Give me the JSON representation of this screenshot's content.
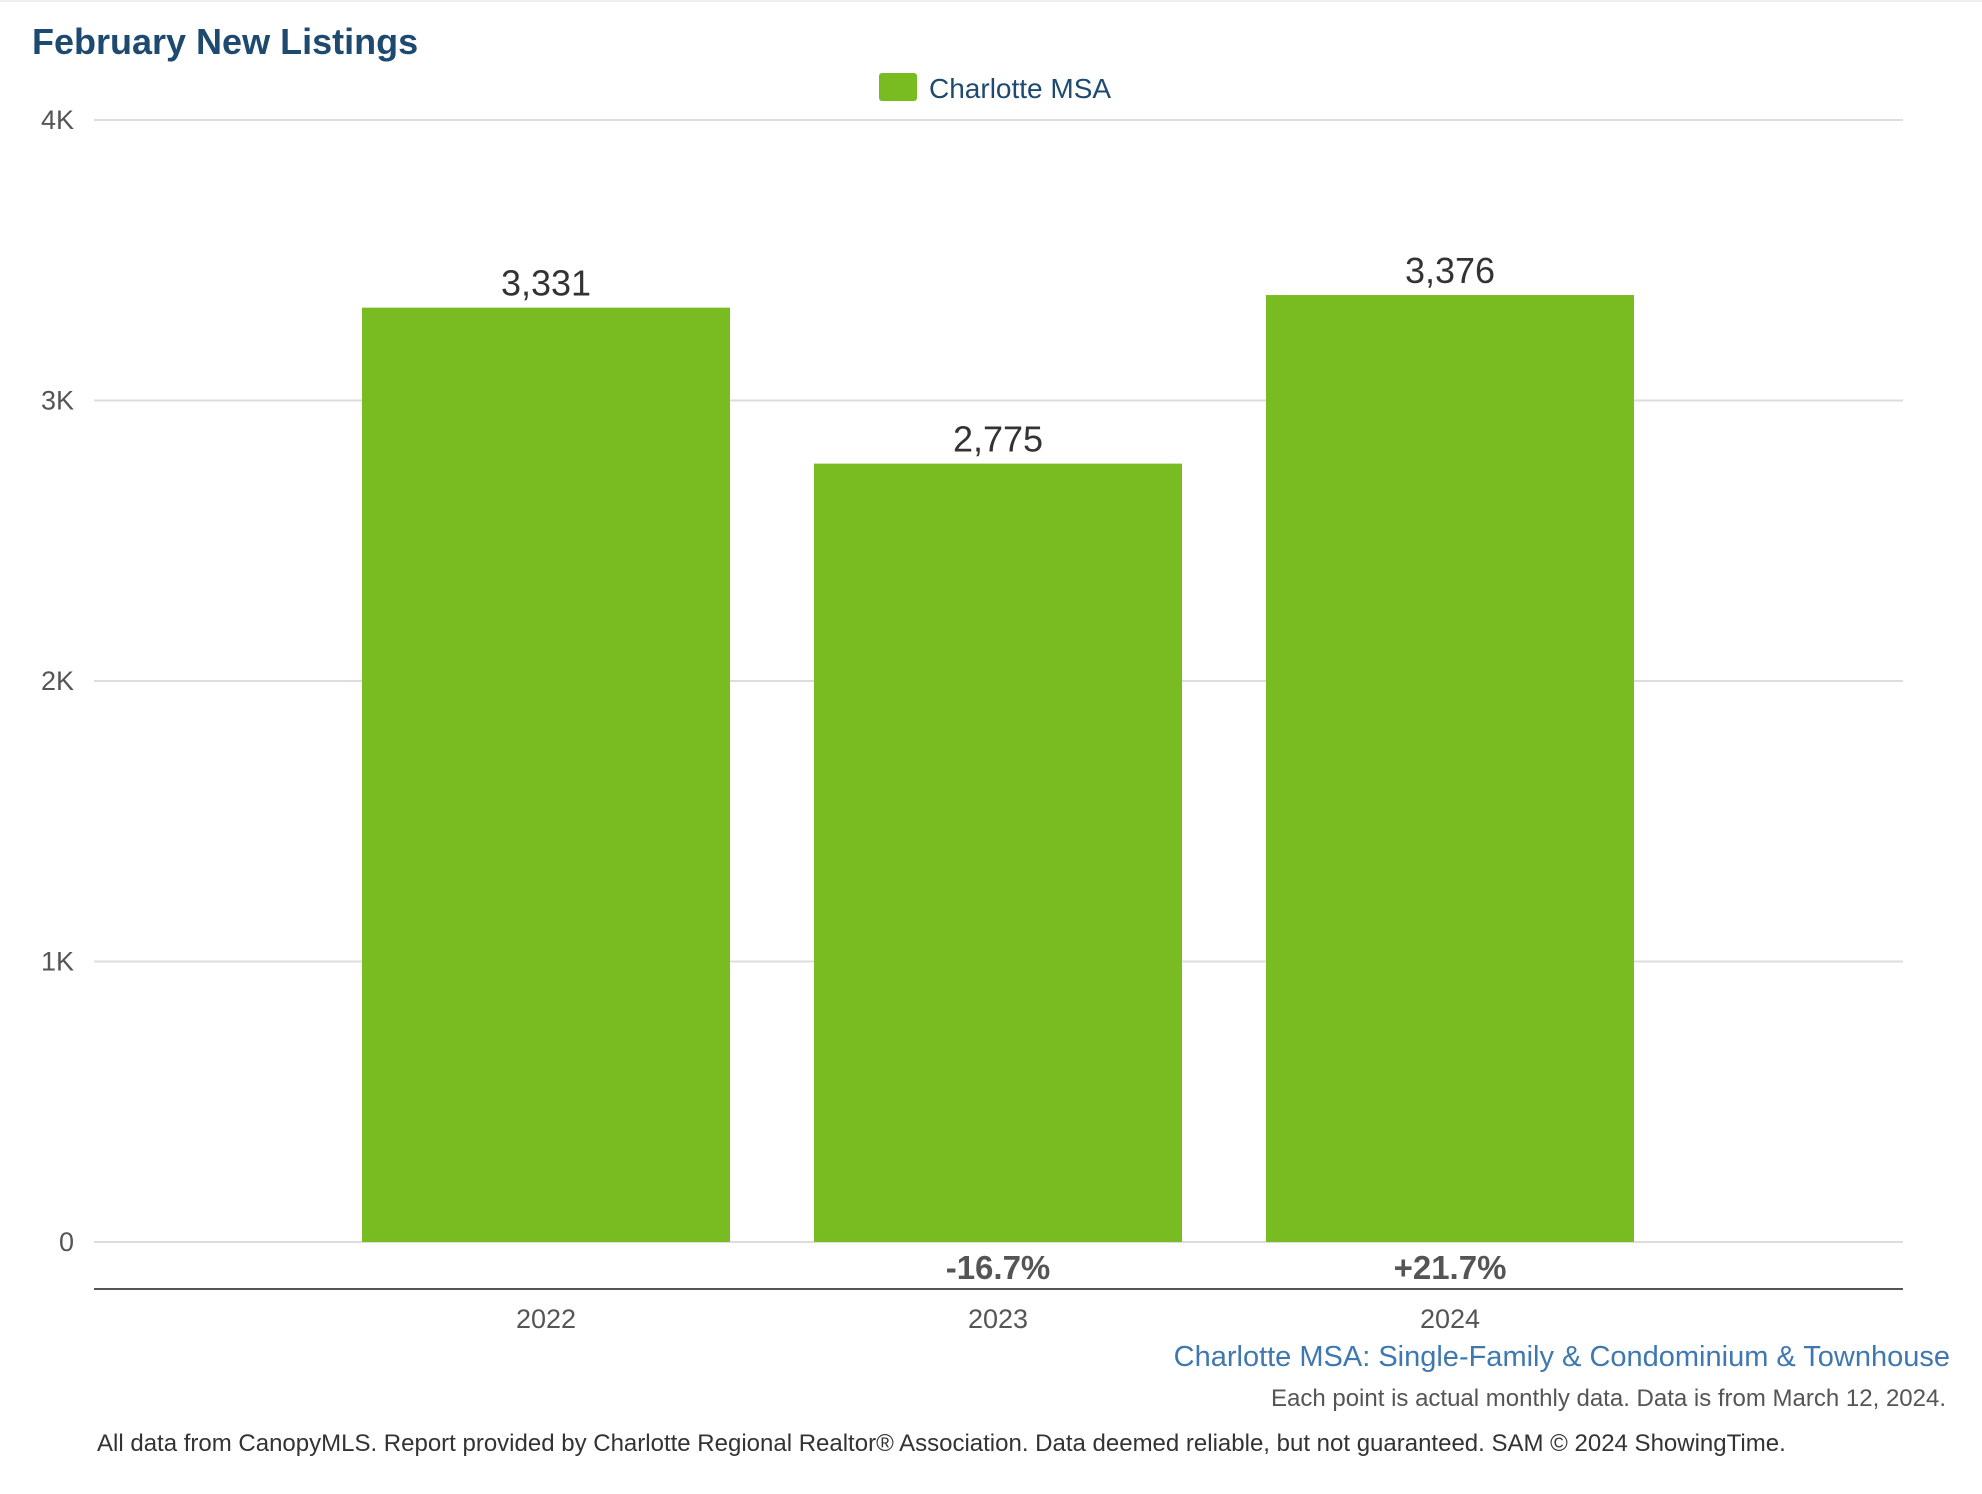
{
  "chart_data": {
    "type": "bar",
    "title": "February New Listings",
    "categories": [
      "2022",
      "2023",
      "2024"
    ],
    "series": [
      {
        "name": "Charlotte MSA",
        "values": [
          3331,
          2775,
          3376
        ]
      }
    ],
    "value_labels": [
      "3,331",
      "2,775",
      "3,376"
    ],
    "change_labels": [
      "",
      "-16.7%",
      "+21.7%"
    ],
    "ylim": [
      0,
      4000
    ],
    "yticks": [
      {
        "value": 0,
        "label": "0"
      },
      {
        "value": 1000,
        "label": "1K"
      },
      {
        "value": 2000,
        "label": "2K"
      },
      {
        "value": 3000,
        "label": "3K"
      },
      {
        "value": 4000,
        "label": "4K"
      }
    ],
    "grid": true,
    "legend_position": "top-center"
  },
  "colors": {
    "bar": "#78bc22",
    "title": "#1f4a70",
    "legend_text": "#1f4a70",
    "subtitle": "#3f78b0",
    "axis_text": "#555555",
    "value_text": "#333333",
    "grid": "#dddddd",
    "axis_line": "#555555"
  },
  "footer": {
    "series_note": "Charlotte MSA: Single-Family & Condominium & Townhouse",
    "data_note": "Each point is actual monthly data. Data is from March 12, 2024.",
    "credits": "All data from CanopyMLS. Report provided by Charlotte Regional Realtor® Association. Data deemed reliable, but not guaranteed. SAM © 2024 ShowingTime."
  }
}
